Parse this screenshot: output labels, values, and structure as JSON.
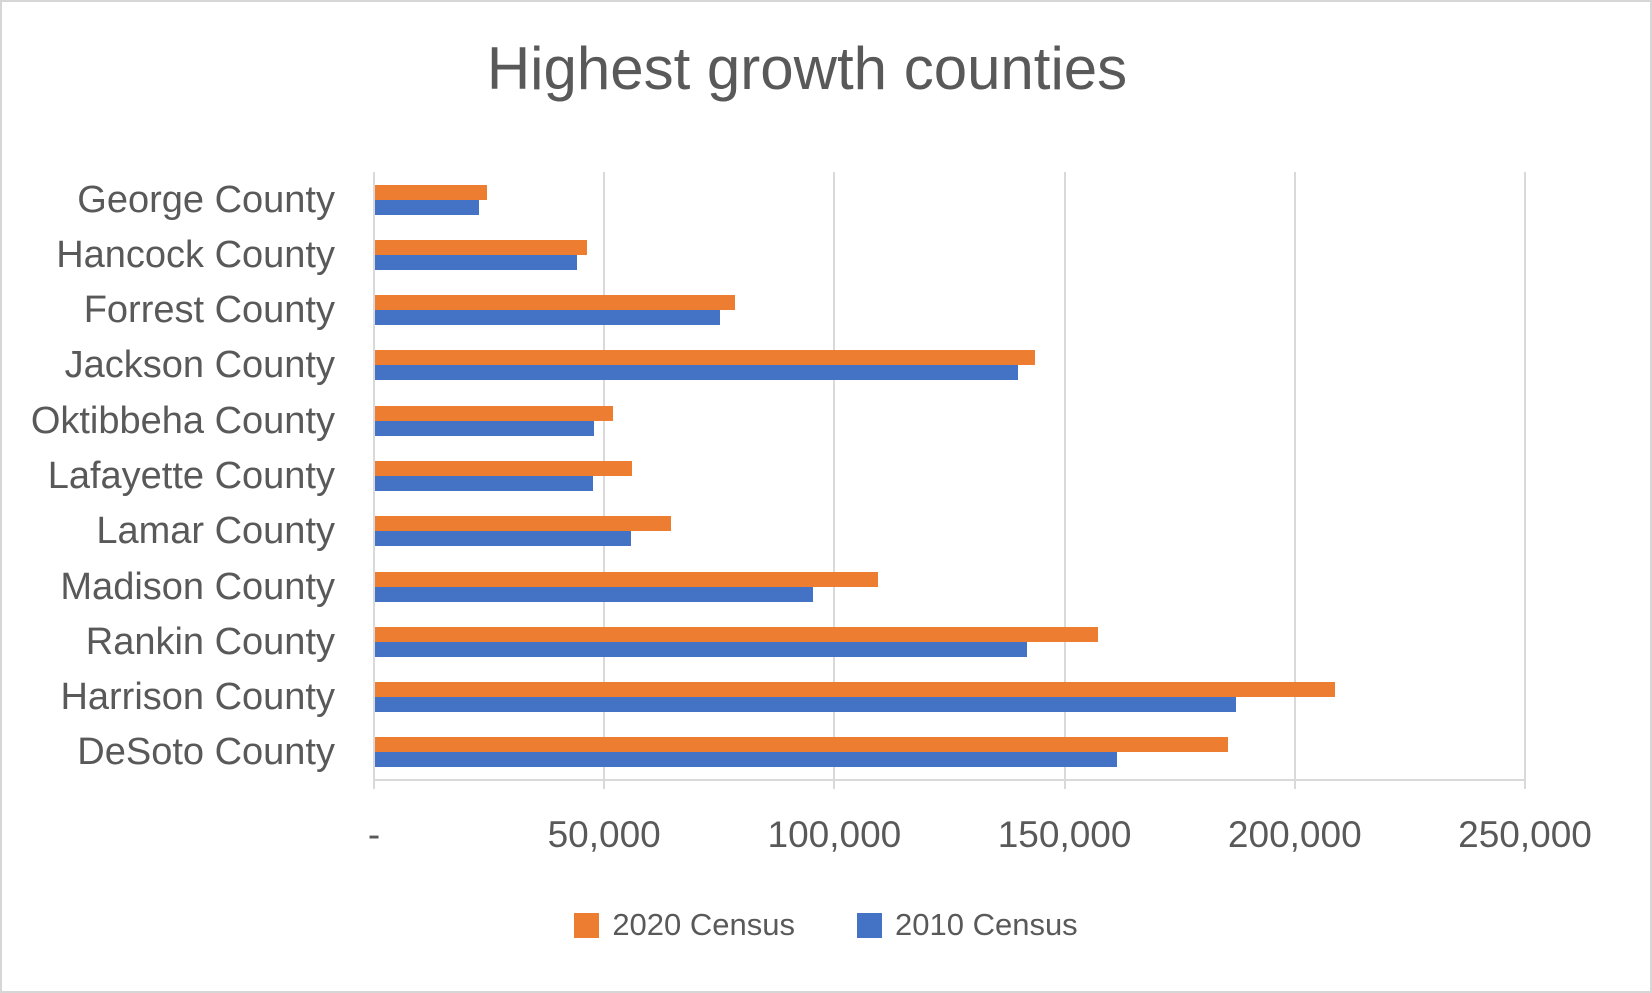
{
  "chart_data": {
    "type": "bar",
    "orientation": "horizontal",
    "title": "Highest growth counties",
    "categories": [
      "George County",
      "Hancock County",
      "Forrest County",
      "Jackson County",
      "Oktibbeha County",
      "Lafayette County",
      "Lamar County",
      "Madison County",
      "Rankin County",
      "Harrison County",
      "DeSoto County"
    ],
    "series": [
      {
        "name": "2020 Census",
        "color": "#ED7D31",
        "values": [
          24350,
          46053,
          78158,
          143252,
          51788,
          55813,
          64222,
          109145,
          157031,
          208621,
          185314
        ]
      },
      {
        "name": "2010 Census",
        "color": "#4472C4",
        "values": [
          22578,
          43929,
          74934,
          139668,
          47671,
          47351,
          55658,
          95203,
          141617,
          187105,
          161252
        ]
      }
    ],
    "xlabel": "",
    "ylabel": "",
    "xlim": [
      0,
      250000
    ],
    "x_ticks": [
      0,
      50000,
      100000,
      150000,
      200000,
      250000
    ],
    "x_tick_labels": [
      "-",
      "50,000",
      "100,000",
      "150,000",
      "200,000",
      "250,000"
    ],
    "grid": "vertical-on",
    "legend_position": "bottom-center",
    "colors": {
      "text": "#595959",
      "gridline": "#D9D9D9",
      "background": "#FFFFFF",
      "frame_border": "#D6D6D6"
    }
  }
}
